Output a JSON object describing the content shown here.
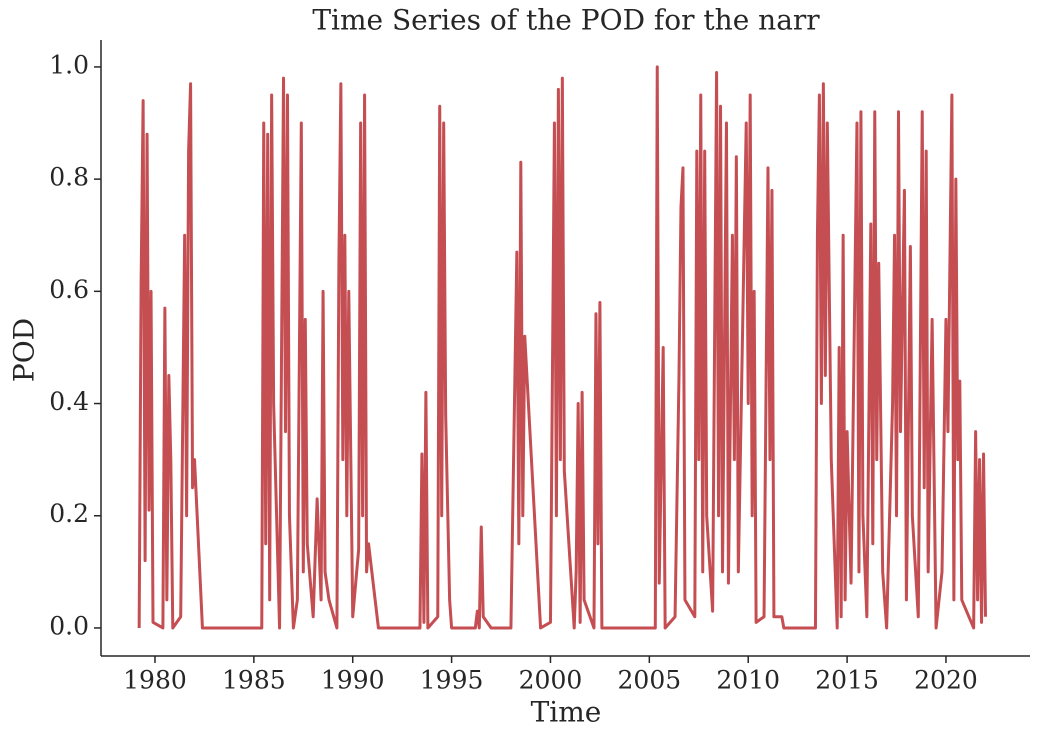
{
  "chart_data": {
    "type": "line",
    "title": "Time Series of the POD for the narr",
    "x_label": "Time",
    "y_label": "POD",
    "color": "#c44e52",
    "x": [
      1979.2,
      1979.3,
      1979.4,
      1979.5,
      1979.6,
      1979.7,
      1979.8,
      1979.9,
      1980.4,
      1980.5,
      1980.6,
      1980.7,
      1980.8,
      1980.9,
      1981.3,
      1981.5,
      1981.6,
      1981.7,
      1981.8,
      1981.9,
      1982.0,
      1982.4,
      1985.4,
      1985.5,
      1985.6,
      1985.7,
      1985.8,
      1985.9,
      1986.0,
      1986.3,
      1986.5,
      1986.6,
      1986.7,
      1986.8,
      1987.0,
      1987.2,
      1987.4,
      1987.5,
      1987.6,
      1987.7,
      1988.0,
      1988.2,
      1988.4,
      1988.5,
      1988.6,
      1988.8,
      1989.2,
      1989.3,
      1989.4,
      1989.5,
      1989.6,
      1989.7,
      1989.8,
      1990.0,
      1990.3,
      1990.4,
      1990.5,
      1990.6,
      1990.7,
      1990.8,
      1991.3,
      1993.4,
      1993.5,
      1993.6,
      1993.7,
      1993.8,
      1994.3,
      1994.4,
      1994.5,
      1994.6,
      1994.7,
      1994.9,
      1995.0,
      1996.2,
      1996.3,
      1996.4,
      1996.5,
      1996.6,
      1997.0,
      1998.0,
      1998.3,
      1998.4,
      1998.5,
      1998.6,
      1998.7,
      1999.5,
      2000.0,
      2000.2,
      2000.3,
      2000.4,
      2000.5,
      2000.6,
      2000.7,
      2001.2,
      2001.3,
      2001.4,
      2001.5,
      2001.6,
      2001.7,
      2002.2,
      2002.3,
      2002.4,
      2002.5,
      2002.6,
      2005.3,
      2005.4,
      2005.5,
      2005.7,
      2005.8,
      2006.3,
      2006.5,
      2006.6,
      2006.7,
      2006.8,
      2007.3,
      2007.4,
      2007.5,
      2007.6,
      2007.7,
      2007.8,
      2007.9,
      2008.2,
      2008.4,
      2008.5,
      2008.6,
      2008.7,
      2008.9,
      2009.0,
      2009.2,
      2009.3,
      2009.4,
      2009.5,
      2009.9,
      2010.0,
      2010.1,
      2010.2,
      2010.3,
      2010.4,
      2010.8,
      2011.0,
      2011.1,
      2011.2,
      2011.3,
      2011.7,
      2011.8,
      2013.4,
      2013.5,
      2013.6,
      2013.7,
      2013.8,
      2013.9,
      2014.0,
      2014.2,
      2014.5,
      2014.6,
      2014.7,
      2014.8,
      2014.9,
      2015.0,
      2015.2,
      2015.5,
      2015.6,
      2015.7,
      2015.8,
      2016.0,
      2016.2,
      2016.3,
      2016.4,
      2016.5,
      2016.6,
      2016.8,
      2017.0,
      2017.3,
      2017.4,
      2017.5,
      2017.6,
      2017.7,
      2017.9,
      2018.0,
      2018.2,
      2018.3,
      2018.6,
      2018.8,
      2018.9,
      2019.0,
      2019.1,
      2019.3,
      2019.5,
      2019.8,
      2020.0,
      2020.1,
      2020.3,
      2020.4,
      2020.5,
      2020.6,
      2020.7,
      2020.8,
      2021.4,
      2021.5,
      2021.6,
      2021.7,
      2021.8,
      2021.9,
      2022.0
    ],
    "values": [
      0,
      0.62,
      0.94,
      0.12,
      0.88,
      0.21,
      0.6,
      0.01,
      0,
      0.57,
      0.05,
      0.45,
      0.3,
      0,
      0.02,
      0.7,
      0.2,
      0.85,
      0.97,
      0.25,
      0.3,
      0,
      0,
      0.9,
      0.15,
      0.88,
      0.05,
      0.95,
      0.4,
      0,
      0.98,
      0.35,
      0.95,
      0.2,
      0,
      0.05,
      0.9,
      0.1,
      0.55,
      0.15,
      0.02,
      0.23,
      0.05,
      0.6,
      0.1,
      0.05,
      0,
      0.65,
      0.97,
      0.3,
      0.7,
      0.2,
      0.6,
      0.02,
      0.14,
      0.9,
      0.2,
      0.95,
      0.1,
      0.15,
      0,
      0,
      0.31,
      0.01,
      0.42,
      0,
      0.02,
      0.93,
      0.2,
      0.9,
      0.38,
      0.05,
      0,
      0,
      0.03,
      0,
      0.18,
      0.02,
      0,
      0,
      0.67,
      0.15,
      0.83,
      0.2,
      0.52,
      0,
      0.01,
      0.9,
      0.2,
      0.96,
      0.3,
      0.98,
      0.28,
      0,
      0.1,
      0.4,
      0.01,
      0.42,
      0.05,
      0,
      0.56,
      0.15,
      0.58,
      0,
      0,
      1.0,
      0.08,
      0.5,
      0,
      0.02,
      0.45,
      0.75,
      0.82,
      0.05,
      0.02,
      0.85,
      0.3,
      0.95,
      0.1,
      0.85,
      0.2,
      0.03,
      0.99,
      0.2,
      0.93,
      0.1,
      0.9,
      0.08,
      0.7,
      0.3,
      0.84,
      0.1,
      0.9,
      0.4,
      0.95,
      0.2,
      0.6,
      0.01,
      0.02,
      0.82,
      0.3,
      0.78,
      0.02,
      0.02,
      0,
      0,
      0.7,
      0.95,
      0.4,
      0.97,
      0.45,
      0.9,
      0.3,
      0,
      0.5,
      0.02,
      0.7,
      0.05,
      0.35,
      0.08,
      0.9,
      0.1,
      0.92,
      0.2,
      0.02,
      0.72,
      0.15,
      0.92,
      0.3,
      0.65,
      0.1,
      0,
      0.4,
      0.7,
      0.2,
      0.92,
      0.35,
      0.78,
      0.05,
      0.68,
      0.2,
      0.02,
      0.92,
      0.25,
      0.85,
      0.1,
      0.55,
      0,
      0.1,
      0.55,
      0.35,
      0.95,
      0.05,
      0.8,
      0.3,
      0.44,
      0.05,
      0,
      0.35,
      0.05,
      0.3,
      0.01,
      0.31,
      0.02
    ],
    "xlim": [
      1977.27,
      2024.25
    ],
    "xticks": [
      1980,
      1985,
      1990,
      1995,
      2000,
      2005,
      2010,
      2015,
      2020
    ],
    "ylim": [
      -0.05,
      1.048
    ],
    "yticks": [
      {
        "value": 0,
        "label": "0.0"
      },
      0.2,
      0.4,
      0.6,
      0.8,
      {
        "value": 1,
        "label": "1.0"
      }
    ]
  }
}
